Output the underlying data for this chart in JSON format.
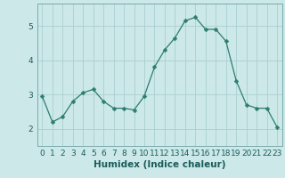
{
  "x": [
    0,
    1,
    2,
    3,
    4,
    5,
    6,
    7,
    8,
    9,
    10,
    11,
    12,
    13,
    14,
    15,
    16,
    17,
    18,
    19,
    20,
    21,
    22,
    23
  ],
  "y": [
    2.95,
    2.2,
    2.35,
    2.8,
    3.05,
    3.15,
    2.8,
    2.6,
    2.6,
    2.55,
    2.95,
    3.8,
    4.3,
    4.65,
    5.15,
    5.25,
    4.9,
    4.9,
    4.55,
    3.4,
    2.7,
    2.6,
    2.6,
    2.05
  ],
  "line_color": "#2d7d6e",
  "marker": "D",
  "marker_size": 2.5,
  "bg_color": "#cce8e8",
  "grid_color": "#aad0d0",
  "xlabel": "Humidex (Indice chaleur)",
  "xlim": [
    -0.5,
    23.5
  ],
  "ylim": [
    1.5,
    5.65
  ],
  "yticks": [
    2,
    3,
    4,
    5
  ],
  "xticks": [
    0,
    1,
    2,
    3,
    4,
    5,
    6,
    7,
    8,
    9,
    10,
    11,
    12,
    13,
    14,
    15,
    16,
    17,
    18,
    19,
    20,
    21,
    22,
    23
  ],
  "xlabel_fontsize": 7.5,
  "tick_fontsize": 6.5
}
